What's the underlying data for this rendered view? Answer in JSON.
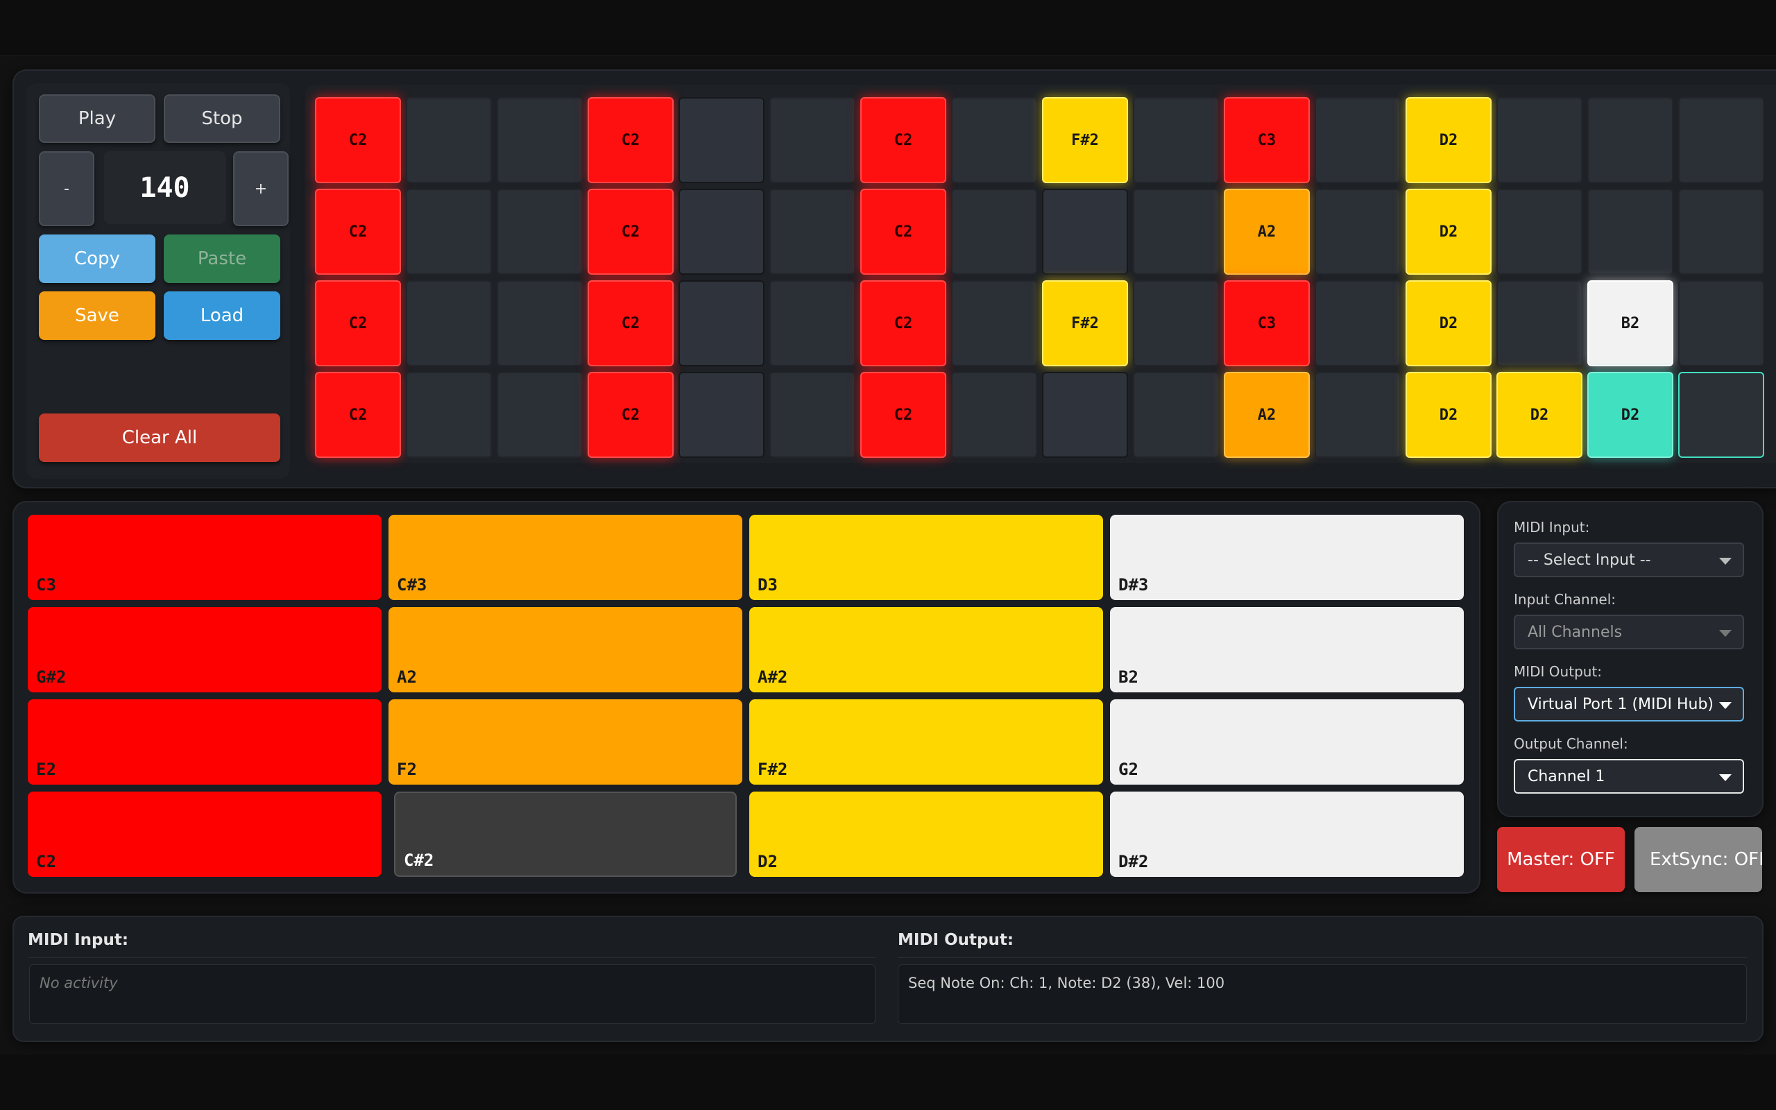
{
  "transport": {
    "play": "Play",
    "stop": "Stop"
  },
  "tempo": {
    "decrement": "-",
    "value": "140",
    "increment": "+"
  },
  "clipboard": {
    "copy": "Copy",
    "paste": "Paste"
  },
  "file": {
    "save": "Save",
    "load": "Load"
  },
  "clear_all": "Clear All",
  "sequencer": {
    "rows": [
      [
        [
          "C2",
          "red"
        ],
        [
          "",
          ""
        ],
        [
          "",
          ""
        ],
        [
          "C2",
          "red"
        ],
        [
          "",
          "cur"
        ],
        [
          "",
          ""
        ],
        [
          "C2",
          "red"
        ],
        [
          "",
          ""
        ],
        [
          "F#2",
          "yellow"
        ],
        [
          "",
          ""
        ],
        [
          "C3",
          "red"
        ],
        [
          "",
          ""
        ],
        [
          "D2",
          "yellow"
        ],
        [
          "",
          ""
        ],
        [
          "",
          ""
        ],
        [
          "",
          ""
        ]
      ],
      [
        [
          "C2",
          "red"
        ],
        [
          "",
          ""
        ],
        [
          "",
          ""
        ],
        [
          "C2",
          "red"
        ],
        [
          "",
          "cur"
        ],
        [
          "",
          ""
        ],
        [
          "C2",
          "red"
        ],
        [
          "",
          ""
        ],
        [
          "",
          "cur"
        ],
        [
          "",
          ""
        ],
        [
          "A2",
          "orange"
        ],
        [
          "",
          ""
        ],
        [
          "D2",
          "yellow"
        ],
        [
          "",
          ""
        ],
        [
          "",
          ""
        ],
        [
          "",
          ""
        ]
      ],
      [
        [
          "C2",
          "red"
        ],
        [
          "",
          ""
        ],
        [
          "",
          ""
        ],
        [
          "C2",
          "red"
        ],
        [
          "",
          "cur"
        ],
        [
          "",
          ""
        ],
        [
          "C2",
          "red"
        ],
        [
          "",
          ""
        ],
        [
          "F#2",
          "yellow"
        ],
        [
          "",
          ""
        ],
        [
          "C3",
          "red"
        ],
        [
          "",
          ""
        ],
        [
          "D2",
          "yellow"
        ],
        [
          "",
          ""
        ],
        [
          "B2",
          "white"
        ],
        [
          "",
          ""
        ]
      ],
      [
        [
          "C2",
          "red"
        ],
        [
          "",
          ""
        ],
        [
          "",
          ""
        ],
        [
          "C2",
          "red"
        ],
        [
          "",
          "cur"
        ],
        [
          "",
          ""
        ],
        [
          "C2",
          "red"
        ],
        [
          "",
          ""
        ],
        [
          "",
          "cur"
        ],
        [
          "",
          ""
        ],
        [
          "A2",
          "orange"
        ],
        [
          "",
          ""
        ],
        [
          "D2",
          "yellow"
        ],
        [
          "D2",
          "yellow"
        ],
        [
          "D2",
          "teal"
        ],
        [
          "",
          "outline"
        ]
      ]
    ]
  },
  "pads": {
    "rows": [
      [
        [
          "C3",
          "red"
        ],
        [
          "C#3",
          "orange"
        ],
        [
          "D3",
          "yellow"
        ],
        [
          "D#3",
          "white"
        ]
      ],
      [
        [
          "G#2",
          "red"
        ],
        [
          "A2",
          "orange"
        ],
        [
          "A#2",
          "yellow"
        ],
        [
          "B2",
          "white"
        ]
      ],
      [
        [
          "E2",
          "red"
        ],
        [
          "F2",
          "orange"
        ],
        [
          "F#2",
          "yellow"
        ],
        [
          "G2",
          "white"
        ]
      ],
      [
        [
          "C2",
          "red"
        ],
        [
          "C#2",
          "dark"
        ],
        [
          "D2",
          "yellow"
        ],
        [
          "D#2",
          "white"
        ]
      ]
    ]
  },
  "midi_settings": {
    "input_label": "MIDI Input:",
    "input_value": "-- Select Input --",
    "input_channel_label": "Input Channel:",
    "input_channel_value": "All Channels",
    "output_label": "MIDI Output:",
    "output_value": "Virtual Port 1 (MIDI Hub)",
    "output_channel_label": "Output Channel:",
    "output_channel_value": "Channel 1"
  },
  "master_button": "Master: OFF",
  "extsync_button": "ExtSync: OFF",
  "log": {
    "input_title": "MIDI Input:",
    "input_text": "No activity",
    "output_title": "MIDI Output:",
    "output_text": "Seq Note On: Ch: 1, Note: D2 (38), Vel: 100"
  },
  "colors": {
    "red": "#ff0000",
    "orange": "#ffa300",
    "yellow": "#ffd700",
    "white": "#f0f0f0",
    "teal": "#40e0c0",
    "copy": "#5dade2",
    "paste": "#2e7d4f",
    "save": "#f39c12",
    "load": "#3498db",
    "clear": "#c0392b",
    "master": "#d32f2f",
    "extsync": "#888888"
  }
}
